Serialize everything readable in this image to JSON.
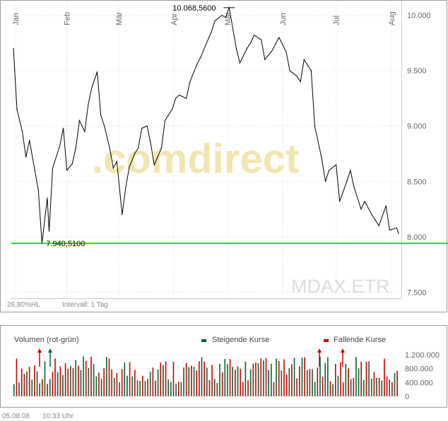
{
  "chart_data": [
    {
      "type": "line",
      "instrument": "MDAX.ETR",
      "watermark_text": ".comdirect",
      "range_label": "26,80%HL",
      "interval_label": "Intervall: 1 Tag",
      "months": [
        "Jan",
        "Feb",
        "Mär",
        "Apr",
        "Mai",
        "Jun",
        "Jul",
        "Aug"
      ],
      "y_ticks": [
        "10.000",
        "9.500",
        "9.000",
        "8.500",
        "8.000",
        "7.500"
      ],
      "ylim": [
        7400,
        10100
      ],
      "high": {
        "value": 10068.56,
        "label": "10.068,5600"
      },
      "low": {
        "value": 7940.51,
        "label": "7.940,5100"
      },
      "colors": {
        "line": "#000000",
        "low_line": "#00ee00",
        "grid": "#cccccc"
      },
      "series": [
        {
          "x": [
            "2008-01-02",
            "2008-01-04",
            "2008-01-07",
            "2008-01-09",
            "2008-01-11",
            "2008-01-14",
            "2008-01-16",
            "2008-01-18",
            "2008-01-21",
            "2008-01-22",
            "2008-01-24",
            "2008-01-28",
            "2008-01-30",
            "2008-02-01",
            "2008-02-04",
            "2008-02-06",
            "2008-02-08",
            "2008-02-11",
            "2008-02-13",
            "2008-02-15",
            "2008-02-18",
            "2008-02-20",
            "2008-02-22",
            "2008-02-25",
            "2008-02-27",
            "2008-02-29",
            "2008-03-03",
            "2008-03-05",
            "2008-03-07",
            "2008-03-10",
            "2008-03-12",
            "2008-03-14",
            "2008-03-17",
            "2008-03-19",
            "2008-03-21",
            "2008-03-25",
            "2008-03-27",
            "2008-03-31",
            "2008-04-02",
            "2008-04-04",
            "2008-04-08",
            "2008-04-10",
            "2008-04-14",
            "2008-04-16",
            "2008-04-18",
            "2008-04-22",
            "2008-04-24",
            "2008-04-28",
            "2008-04-30",
            "2008-05-02",
            "2008-05-06",
            "2008-05-08",
            "2008-05-12",
            "2008-05-14",
            "2008-05-16",
            "2008-05-20",
            "2008-05-22",
            "2008-05-26",
            "2008-05-28",
            "2008-05-30",
            "2008-06-03",
            "2008-06-05",
            "2008-06-09",
            "2008-06-11",
            "2008-06-13",
            "2008-06-17",
            "2008-06-19",
            "2008-06-23",
            "2008-06-25",
            "2008-06-27",
            "2008-07-01",
            "2008-07-03",
            "2008-07-07",
            "2008-07-09",
            "2008-07-11",
            "2008-07-15",
            "2008-07-17",
            "2008-07-21",
            "2008-07-23",
            "2008-07-25",
            "2008-07-29",
            "2008-07-31",
            "2008-08-04",
            "2008-08-05"
          ],
          "values": [
            9700,
            9150,
            8950,
            8720,
            8870,
            8600,
            8420,
            7941,
            8350,
            8050,
            8620,
            8820,
            8980,
            8600,
            8660,
            8800,
            9050,
            8950,
            9200,
            9350,
            9490,
            9100,
            9000,
            8800,
            8620,
            8680,
            8200,
            8450,
            8630,
            8750,
            8800,
            8980,
            9000,
            8840,
            8650,
            8800,
            9050,
            9150,
            9250,
            9280,
            9250,
            9400,
            9560,
            9620,
            9700,
            9850,
            9950,
            10000,
            9980,
            10069,
            9700,
            9570,
            9700,
            9750,
            9820,
            9780,
            9600,
            9680,
            9740,
            9800,
            9670,
            9500,
            9450,
            9400,
            9600,
            9500,
            9000,
            8700,
            8500,
            8600,
            8650,
            8320,
            8500,
            8600,
            8450,
            8250,
            8320,
            8200,
            8150,
            8100,
            8280,
            8060,
            8080,
            8030
          ]
        }
      ]
    },
    {
      "type": "bar",
      "title": "Volumen (rot-grün)",
      "legend": [
        {
          "label": "Steigende Kurse",
          "color": "#006633"
        },
        {
          "label": "Fallende Kurse",
          "color": "#cc0000"
        }
      ],
      "y_ticks": [
        "1.200.000",
        "800.000",
        "400.000",
        "0"
      ],
      "ylim": [
        0,
        1300000
      ],
      "note": "daily trading volume per session; red = falling close, green = rising close"
    }
  ],
  "footer": {
    "date": "05.08.08",
    "time": "10:33 Uhr"
  }
}
